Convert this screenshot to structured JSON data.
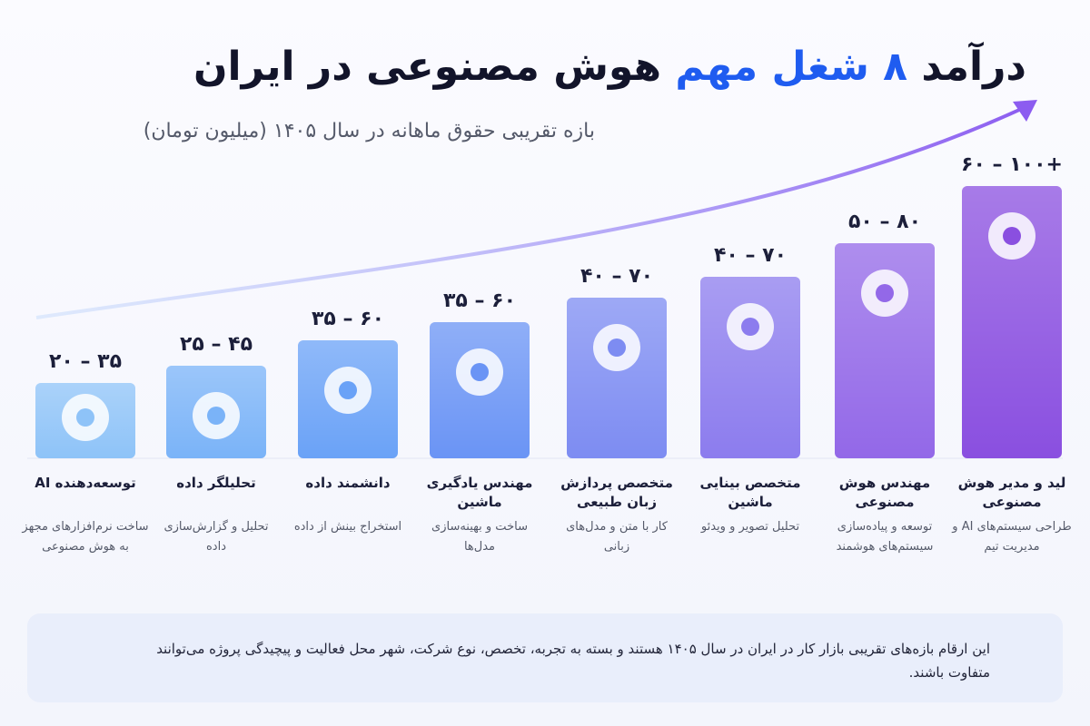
{
  "header": {
    "title_start": "درآمد",
    "title_highlight": "۸ شغل مهم",
    "title_end": "هوش مصنوعی در ایران",
    "subtitle": "بازه تقریبی حقوق ماهانه در سال ۱۴۰۵ (میلیون تومان)"
  },
  "jobs": [
    {
      "range": "۲۰ – ۳۵",
      "title": "توسعه‌دهنده AI",
      "description": "ساخت نرم‌افزارهای مجهز به هوش مصنوعی"
    },
    {
      "range": "۲۵ – ۴۵",
      "title": "تحلیلگر داده",
      "description": "تحلیل و گزارش‌سازی داده"
    },
    {
      "range": "۳۵ – ۶۰",
      "title": "دانشمند داده",
      "description": "استخراج بینش از داده"
    },
    {
      "range": "۳۵ – ۶۰",
      "title": "مهندس یادگیری ماشین",
      "description": "ساخت و بهینه‌سازی مدل‌ها"
    },
    {
      "range": "۴۰ – ۷۰",
      "title": "متخصص پردازش زبان طبیعی",
      "description": "کار با متن و مدل‌های زبانی"
    },
    {
      "range": "۴۰ – ۷۰",
      "title": "متخصص بینایی ماشین",
      "description": "تحلیل تصویر و ویدئو"
    },
    {
      "range": "۵۰ – ۸۰",
      "title": "مهندس هوش مصنوعی",
      "description": "توسعه و پیاده‌سازی سیستم‌های هوشمند"
    },
    {
      "range": "۶۰ – ۱۰۰+",
      "title": "لید و مدیر هوش مصنوعی",
      "description": "طراحی سیستم‌های AI و مدیریت تیم"
    }
  ],
  "note": "این ارقام بازه‌های تقریبی بازار کار در ایران در سال ۱۴۰۵ هستند و بسته به تجربه، تخصص، نوع شرکت، شهر محل فعالیت و پیچیدگی پروژه می‌توانند متفاوت باشند."
}
